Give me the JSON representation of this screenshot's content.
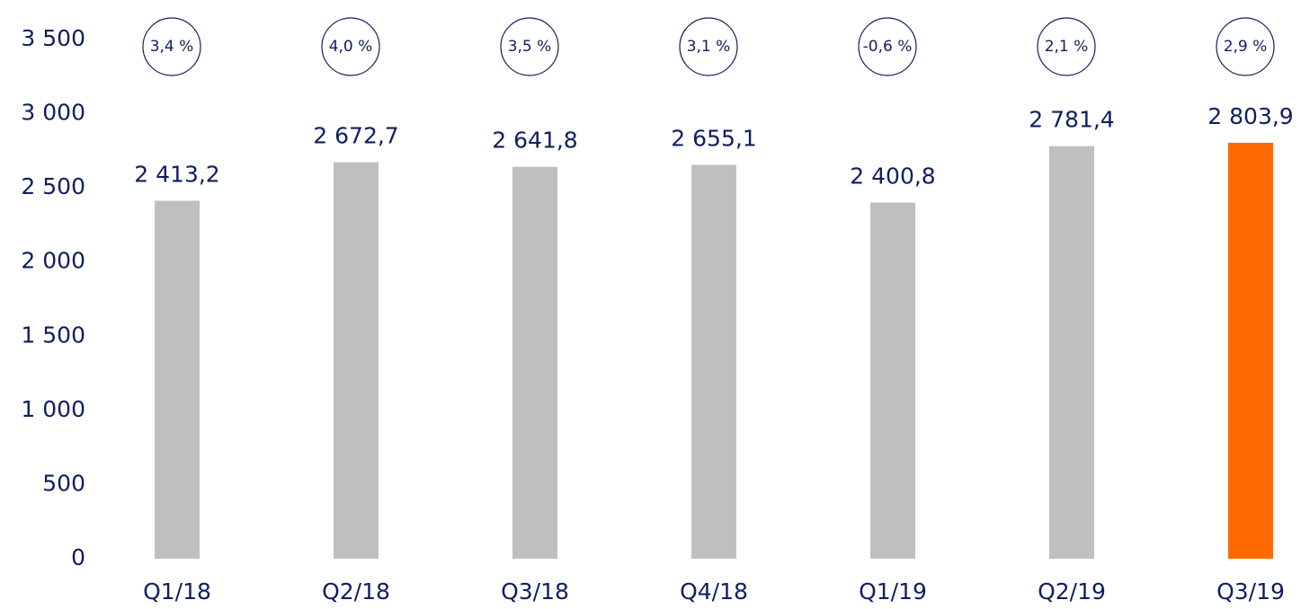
{
  "chart_data": {
    "type": "bar",
    "categories": [
      "Q1/18",
      "Q2/18",
      "Q3/18",
      "Q4/18",
      "Q1/19",
      "Q2/19",
      "Q3/19"
    ],
    "values": [
      2413.2,
      2672.7,
      2641.8,
      2655.1,
      2400.8,
      2781.4,
      2803.9
    ],
    "value_labels": [
      "2 413,2",
      "2 672,7",
      "2 641,8",
      "2 655,1",
      "2 400,8",
      "2 781,4",
      "2 803,9"
    ],
    "annotations": [
      "3,4 %",
      "4,0 %",
      "3,5 %",
      "3,1 %",
      "-0,6 %",
      "2,1 %",
      "2,9 %"
    ],
    "colors": [
      "#bfbfbf",
      "#bfbfbf",
      "#bfbfbf",
      "#bfbfbf",
      "#bfbfbf",
      "#bfbfbf",
      "#ff6a00"
    ],
    "ylim": [
      0,
      3500
    ],
    "yticks": [
      0,
      500,
      {
        "value": 1000,
        "label": "1 000"
      },
      {
        "value": 1500,
        "label": "1 500"
      },
      {
        "value": 2000,
        "label": "2 000"
      },
      {
        "value": 2500,
        "label": "2 500"
      },
      {
        "value": 3000,
        "label": "3 000"
      },
      {
        "value": 3500,
        "label": "3 500"
      }
    ],
    "grid": false
  }
}
